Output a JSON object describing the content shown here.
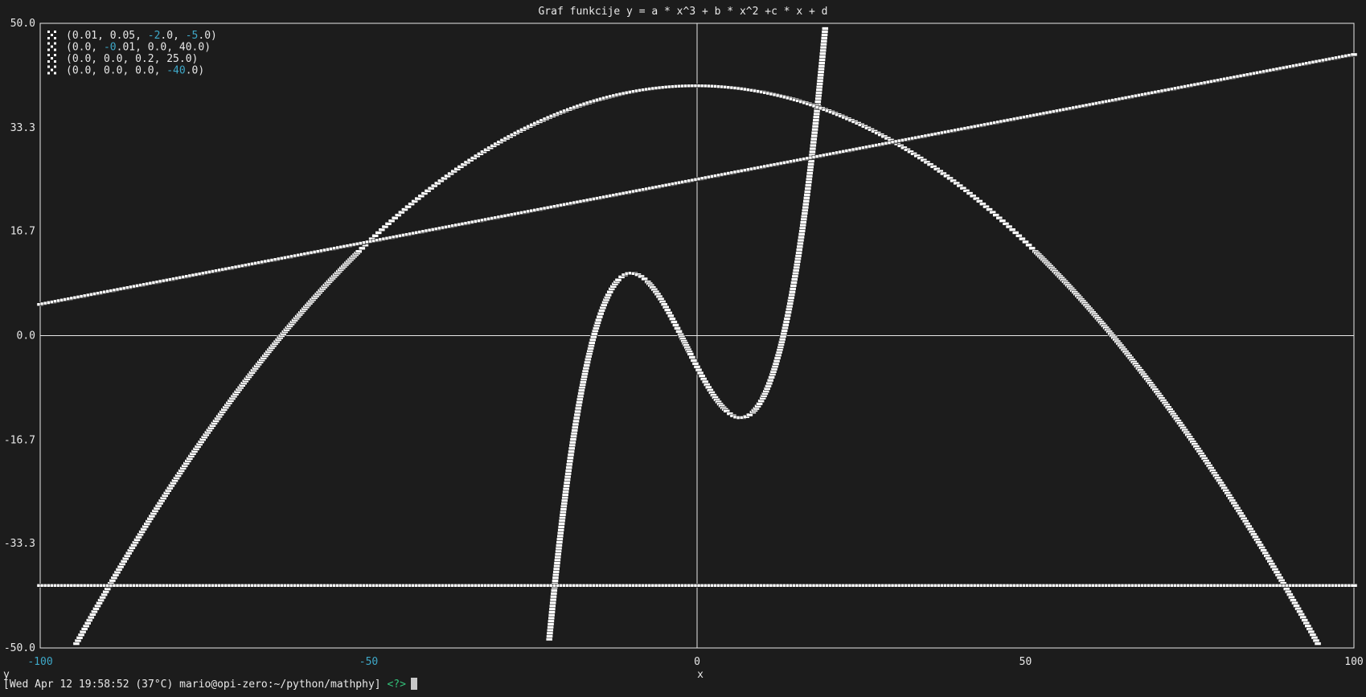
{
  "chart_data": {
    "type": "line",
    "title": "Graf funkcije y = a * x^3 + b * x^2 +c * x + d",
    "xlabel": "x",
    "ylabel": "y",
    "xlim": [
      -100,
      100
    ],
    "ylim": [
      -50,
      50
    ],
    "x_ticks": [
      "-100",
      "-50",
      "0",
      "50",
      "100"
    ],
    "y_ticks": [
      "50.0",
      "33.3",
      "16.7",
      "0.0",
      "-16.7",
      "-33.3",
      "-50.0"
    ],
    "grid": false,
    "zero_axes": true,
    "legend_position": "top-left",
    "series": [
      {
        "name": "(0.01, 0.05, -2.0, -5.0)",
        "coefficients": [
          0.01,
          0.05,
          -2.0,
          -5.0
        ]
      },
      {
        "name": "(0.0, -0.01, 0.0, 40.0)",
        "coefficients": [
          0.0,
          -0.01,
          0.0,
          40.0
        ]
      },
      {
        "name": "(0.0, 0.0, 0.2, 25.0)",
        "coefficients": [
          0.0,
          0.0,
          0.2,
          25.0
        ]
      },
      {
        "name": "(0.0, 0.0, 0.0, -40.0)",
        "coefficients": [
          0.0,
          0.0,
          0.0,
          -40.0
        ]
      }
    ]
  },
  "colors": {
    "background": "#1c1c1c",
    "foreground": "#e8e8e8",
    "negative_number": "#3ea8c8",
    "prompt_symbol": "#33c27a",
    "mark": "#ffffff"
  },
  "prompt": {
    "text": "[Wed Apr 12 19:58:52 (37°C) mario@opi-zero:~/python/mathphy]",
    "symbol": "<?>"
  }
}
